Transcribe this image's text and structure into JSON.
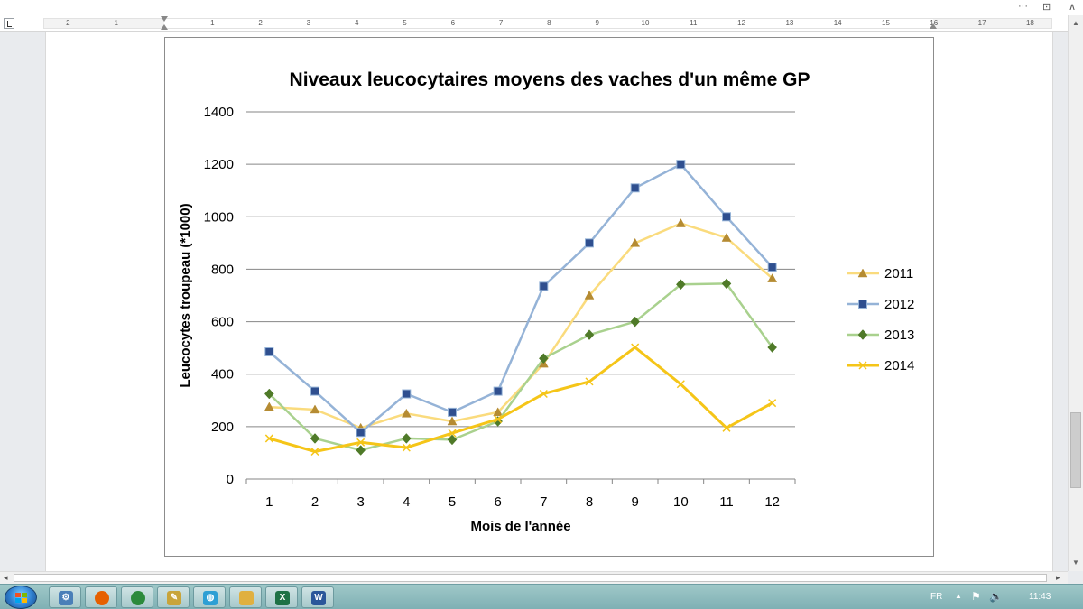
{
  "window": {
    "more_label": "···",
    "restore_label": "⊡",
    "collapse_label": "∧"
  },
  "ruler": {
    "left_ticks": [
      "2",
      "1"
    ],
    "right_ticks": [
      "1",
      "2",
      "3",
      "4",
      "5",
      "6",
      "7",
      "8",
      "9",
      "10",
      "11",
      "12",
      "13",
      "14",
      "15",
      "16",
      "17",
      "18"
    ]
  },
  "taskbar": {
    "apps": [
      {
        "icon": "network-settings-icon",
        "glyph": "⚙",
        "color": "#4a7fb8"
      },
      {
        "icon": "firefox-icon",
        "glyph": "",
        "color": "#e66000"
      },
      {
        "icon": "chrome-icon",
        "glyph": "",
        "color": "#2c8a3c"
      },
      {
        "icon": "paint-icon",
        "glyph": "✎",
        "color": "#c8a43a"
      },
      {
        "icon": "globe-icon",
        "glyph": "◍",
        "color": "#2e9fd4"
      },
      {
        "icon": "folder-icon",
        "glyph": "",
        "color": "#e0b040"
      },
      {
        "icon": "excel-icon",
        "glyph": "X",
        "color": "#1e7145"
      },
      {
        "icon": "word-icon",
        "glyph": "W",
        "color": "#2b579a"
      }
    ],
    "language": "FR",
    "clock": "11:43"
  },
  "chart_data": {
    "type": "line",
    "title": "Niveaux leucocytaires moyens des vaches d'un même GP",
    "xlabel": "Mois de l'année",
    "ylabel": "Leucocytes troupeau (*1000)",
    "categories": [
      "1",
      "2",
      "3",
      "4",
      "5",
      "6",
      "7",
      "8",
      "9",
      "10",
      "11",
      "12"
    ],
    "ylim": [
      0,
      1400
    ],
    "yticks": [
      "0",
      "200",
      "400",
      "600",
      "800",
      "1000",
      "1200",
      "1400"
    ],
    "grid": true,
    "legend_position": "right",
    "series": [
      {
        "name": "2011",
        "line_color": "#fadb7d",
        "marker": "triangle",
        "marker_color": "#b58b32",
        "values": [
          275,
          265,
          195,
          250,
          220,
          255,
          440,
          700,
          900,
          975,
          920,
          765
        ]
      },
      {
        "name": "2012",
        "line_color": "#95b3d7",
        "marker": "square",
        "marker_color": "#2f4f8f",
        "values": [
          485,
          335,
          178,
          325,
          255,
          335,
          735,
          900,
          1110,
          1200,
          1000,
          808
        ]
      },
      {
        "name": "2013",
        "line_color": "#a9d18e",
        "marker": "diamond",
        "marker_color": "#4f7a28",
        "values": [
          325,
          155,
          110,
          155,
          150,
          220,
          460,
          550,
          600,
          742,
          745,
          502
        ]
      },
      {
        "name": "2014",
        "line_color": "#f5c518",
        "marker": "cross",
        "marker_color": "#f5c518",
        "values": [
          155,
          105,
          140,
          120,
          175,
          228,
          325,
          372,
          502,
          362,
          195,
          290
        ]
      }
    ]
  }
}
